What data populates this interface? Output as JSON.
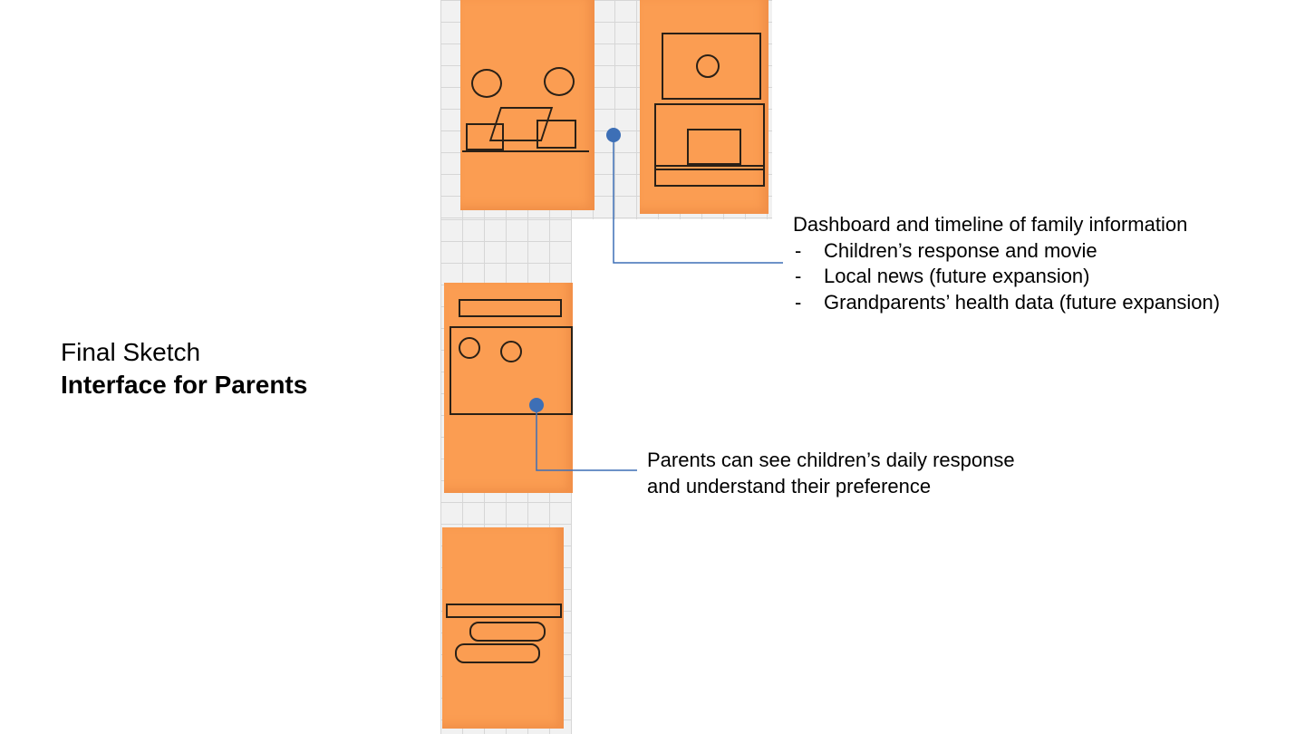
{
  "slide": {
    "title_line1": "Final Sketch",
    "title_line2": "Interface for Parents"
  },
  "annotations": {
    "dashboard": {
      "heading": "Dashboard and timeline of family information",
      "bullets": [
        "Children’s response and movie",
        "Local news (future expansion)",
        "Grandparents’ health data (future expansion)"
      ]
    },
    "daily": {
      "line1": "Parents can see children’s daily response",
      "line2": "and understand their preference"
    }
  },
  "colors": {
    "sticky_note": "#fb9d52",
    "callout_line": "#3d6fb6",
    "arrow": "#d8564a"
  }
}
